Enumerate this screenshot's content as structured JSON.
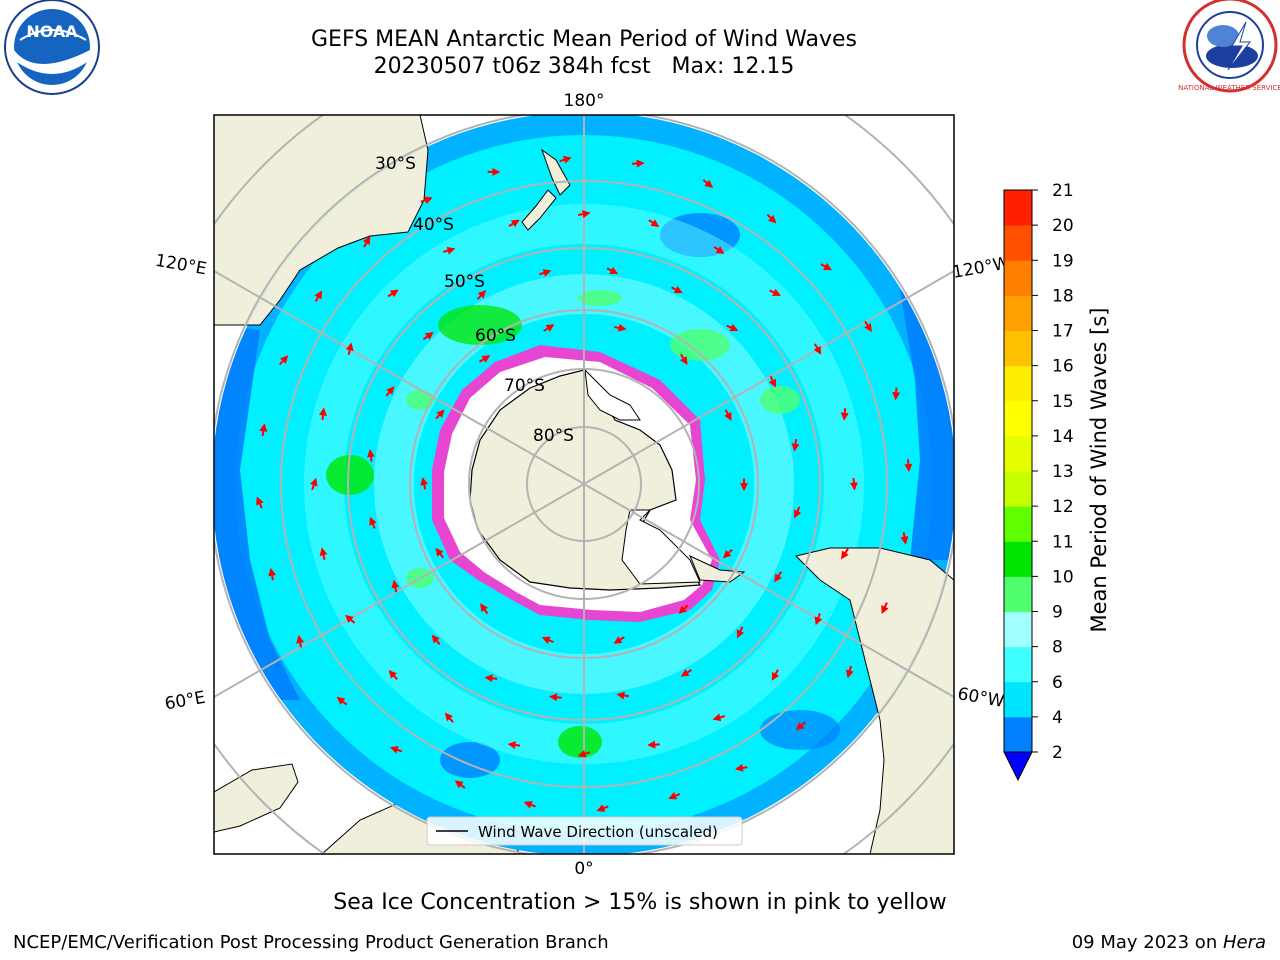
{
  "header": {
    "title_line1": "GEFS MEAN Antarctic Mean Period of Wind Waves",
    "title_line2": "20230507 t06z 384h fcst   Max: 12.15",
    "logo_left": "NOAA",
    "logo_left_ring_text": "NATIONAL OCEANIC AND ATMOSPHERIC ADMINISTRATION · U.S. DEPARTMENT OF COMMERCE",
    "logo_right_ring_text": "NATIONAL WEATHER SERVICE"
  },
  "map": {
    "projection": "south polar stereographic",
    "longitude_labels": {
      "top": "180°",
      "bottom": "0°",
      "upper_left": "120°E",
      "lower_left": "60°E",
      "upper_right": "120°W",
      "lower_right": "60°W"
    },
    "latitude_labels": [
      "30°S",
      "40°S",
      "50°S",
      "60°S",
      "70°S",
      "80°S"
    ],
    "legend_label": "Wind Wave Direction (unscaled)",
    "colors": {
      "ocean_base": "#00f0ff",
      "ocean_light": "#66ffff",
      "ocean_deep": "#0080ff",
      "land": "#efefdc",
      "ice": "#ffffff",
      "sea_ice_edge": "#ff33cc",
      "arrows": "#ff0000",
      "grid": "#b3b3b3"
    }
  },
  "colorbar": {
    "title": "Mean Period of Wind Waves [s]",
    "ticks": [
      "2",
      "4",
      "6",
      "8",
      "9",
      "10",
      "11",
      "12",
      "13",
      "14",
      "15",
      "16",
      "17",
      "18",
      "19",
      "20",
      "21"
    ],
    "extend": "min",
    "colors": [
      "#0080ff",
      "#00e5ff",
      "#40ffff",
      "#a0ffff",
      "#50ff70",
      "#00e600",
      "#60ff00",
      "#c8ff00",
      "#e6ff00",
      "#ffff00",
      "#ffee00",
      "#ffc000",
      "#ffa000",
      "#ff8000",
      "#ff5000",
      "#ff2000"
    ],
    "extend_color": "#0000ff"
  },
  "footer": {
    "caption": "Sea Ice Concentration > 15% is shown in pink to yellow",
    "credit": "NCEP/EMC/Verification Post Processing Product Generation Branch",
    "date": "09 May 2023 on ",
    "host": "Hera"
  }
}
